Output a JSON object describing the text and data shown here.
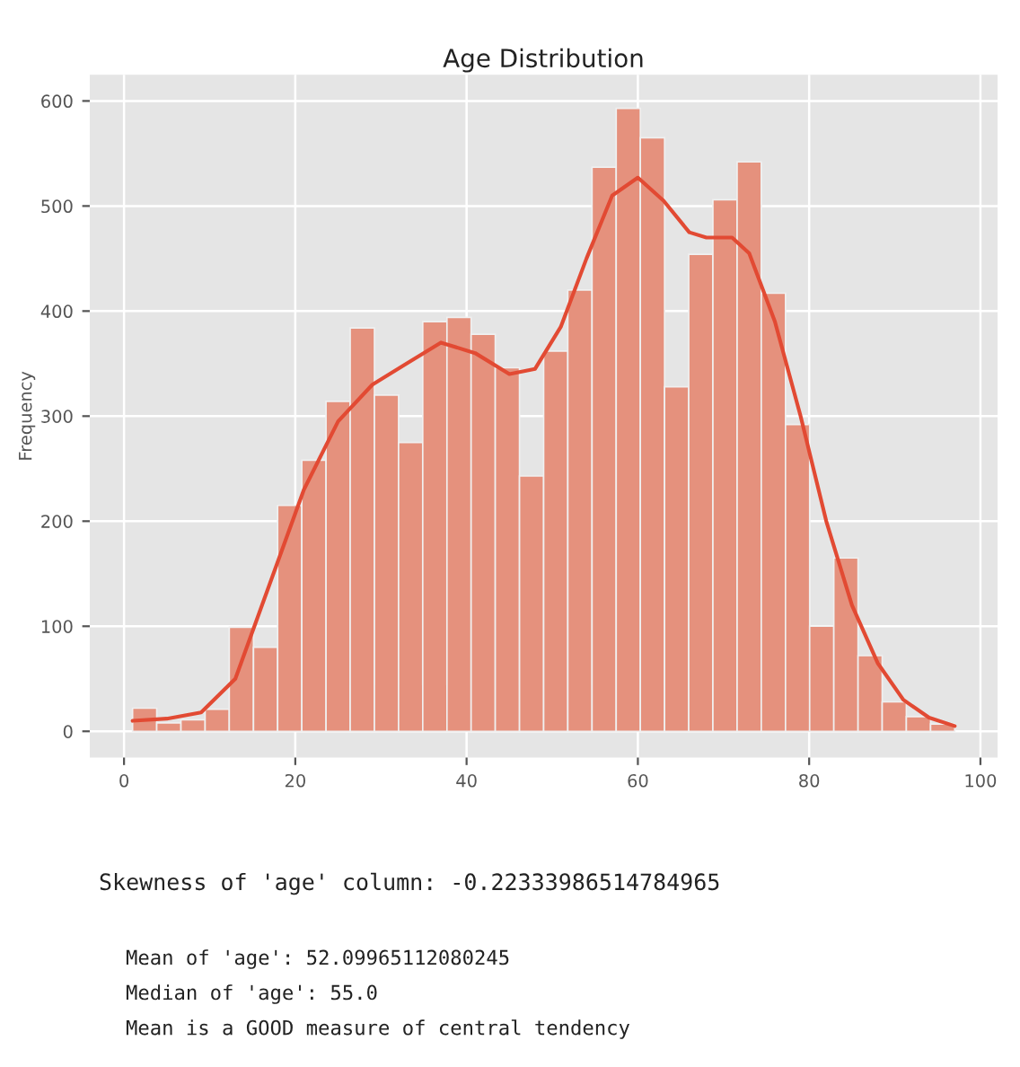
{
  "chart_data": {
    "type": "histogram",
    "title": "Age Distribution",
    "ylabel": "Frequency",
    "series": [
      {
        "color": "#e5917d",
        "bins": [
          1.0,
          3.82,
          6.65,
          9.47,
          12.29,
          15.12,
          17.94,
          20.76,
          23.59,
          26.41,
          29.24,
          32.06,
          34.88,
          37.71,
          40.53,
          43.35,
          46.18,
          49.0,
          51.82,
          54.65,
          57.47,
          60.29,
          63.12,
          65.94,
          68.76,
          71.59,
          74.41,
          77.24,
          80.06,
          82.88,
          85.71,
          88.53,
          91.35,
          94.18,
          97.0
        ],
        "values": [
          22,
          8,
          11,
          21,
          99,
          80,
          215,
          258,
          314,
          384,
          320,
          275,
          390,
          394,
          378,
          346,
          243,
          362,
          420,
          537,
          593,
          565,
          328,
          454,
          506,
          542,
          417,
          292,
          100,
          165,
          72,
          28,
          14,
          7
        ]
      },
      {
        "type": "line",
        "color": "#e24a33",
        "x": [
          1,
          5,
          9,
          13,
          17,
          21,
          25,
          29,
          33,
          37,
          41,
          45,
          48,
          51,
          54,
          57,
          60,
          63,
          66,
          68,
          71,
          73,
          76,
          79,
          82,
          85,
          88,
          91,
          94,
          97
        ],
        "values": [
          10,
          12,
          18,
          50,
          140,
          230,
          295,
          330,
          350,
          370,
          360,
          340,
          345,
          385,
          450,
          510,
          527,
          505,
          475,
          470,
          470,
          455,
          390,
          300,
          200,
          120,
          65,
          30,
          13,
          5
        ]
      }
    ],
    "xlim": [
      -4,
      102
    ],
    "xticks": [
      0,
      20,
      40,
      60,
      80,
      100
    ],
    "ylim": [
      -25,
      625
    ],
    "yticks": [
      0,
      100,
      200,
      300,
      400,
      500,
      600
    ],
    "grid": true,
    "annotations": [
      "Skewness of 'age' column: -0.22333986514784965",
      "Mean of 'age': 52.09965112080245",
      "Median of 'age': 55.0",
      "Mean is a GOOD measure of central tendency"
    ]
  }
}
